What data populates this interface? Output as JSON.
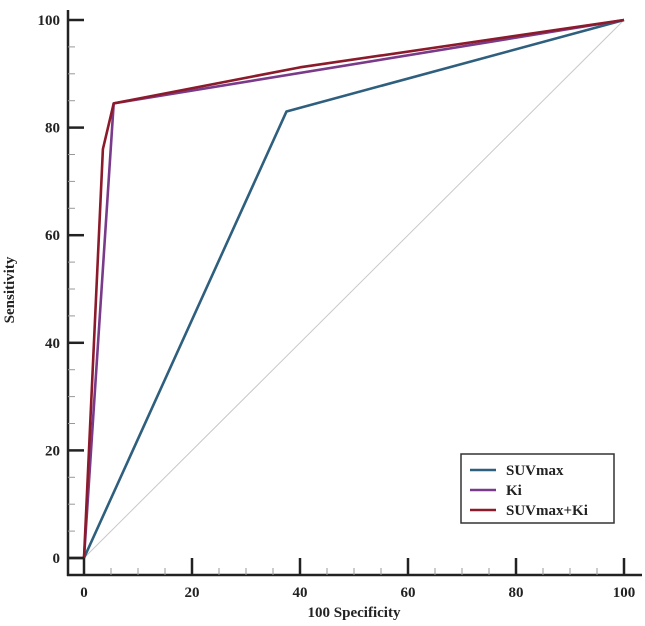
{
  "chart_data": {
    "type": "line",
    "title": "",
    "xlabel": "100-Specificity",
    "xlabel_display": "100 Specificity",
    "ylabel": "Sensitivity",
    "xlim": [
      0,
      100
    ],
    "ylim": [
      0,
      100
    ],
    "x_ticks": [
      0,
      20,
      40,
      60,
      80,
      100
    ],
    "y_ticks": [
      0,
      20,
      40,
      60,
      80,
      100
    ],
    "x_tick_labels": [
      "0",
      "20",
      "40",
      "60",
      "80",
      "100"
    ],
    "y_tick_labels": [
      "0",
      "20",
      "40",
      "60",
      "80",
      "100"
    ],
    "grid": false,
    "legend_position": "lower right",
    "reference_line": {
      "name": "diagonal",
      "points": [
        [
          0,
          0
        ],
        [
          100,
          100
        ]
      ],
      "color": "#c8c8c8"
    },
    "series": [
      {
        "name": "SUVmax",
        "color": "#2e5f7e",
        "points": [
          [
            0,
            0
          ],
          [
            37.5,
            83
          ],
          [
            100,
            100
          ]
        ]
      },
      {
        "name": "Ki",
        "color": "#7a3a8a",
        "points": [
          [
            0,
            0
          ],
          [
            5.5,
            84.5
          ],
          [
            100,
            100
          ]
        ]
      },
      {
        "name": "SUVmax+Ki",
        "color": "#8b1a2a",
        "points": [
          [
            0,
            0
          ],
          [
            3.5,
            76
          ],
          [
            5.5,
            84.5
          ],
          [
            40,
            91.2
          ],
          [
            100,
            100
          ]
        ]
      }
    ]
  },
  "legend": {
    "items": [
      {
        "label": "SUVmax",
        "color": "#2e5f7e"
      },
      {
        "label": "Ki",
        "color": "#7a3a8a"
      },
      {
        "label": "SUVmax+Ki",
        "color": "#8b1a2a"
      }
    ]
  },
  "axes": {
    "x_title": "100 Specificity",
    "y_title": "Sensitivity"
  }
}
